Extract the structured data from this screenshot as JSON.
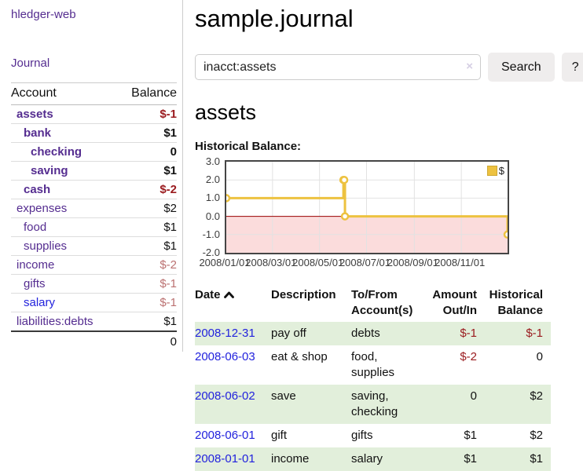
{
  "colors": {
    "link_purple": "#552d90",
    "link_blue": "#2222dd",
    "negative_strong": "#9a1a1e",
    "negative_soft": "#bb7171",
    "row_stripe_green": "#e2efdb",
    "button_gray": "#efeded",
    "chart_line_gold": "#edc240",
    "chart_negative_region": "#fbdcdc",
    "chart_zero_line": "#990000"
  },
  "app_title": "hledger-web",
  "sidebar": {
    "journal_link": "Journal",
    "accounts": {
      "header_account": "Account",
      "header_balance": "Balance",
      "rows": [
        {
          "name": "assets",
          "balance": "$-1"
        },
        {
          "name": "bank",
          "balance": "$1"
        },
        {
          "name": "checking",
          "balance": "0"
        },
        {
          "name": "saving",
          "balance": "$1"
        },
        {
          "name": "cash",
          "balance": "$-2"
        },
        {
          "name": "expenses",
          "balance": "$2"
        },
        {
          "name": "food",
          "balance": "$1"
        },
        {
          "name": "supplies",
          "balance": "$1"
        },
        {
          "name": "income",
          "balance": "$-2"
        },
        {
          "name": "gifts",
          "balance": "$-1"
        },
        {
          "name": "salary",
          "balance": "$-1"
        },
        {
          "name": "liabilities:debts",
          "balance": "$1"
        }
      ],
      "total": "0"
    }
  },
  "main": {
    "title": "sample.journal",
    "search": {
      "value": "inacct:assets",
      "clear": "×",
      "search_button": "Search",
      "help_button": "?"
    },
    "account_heading": "assets",
    "section_label": "Historical Balance:",
    "register": {
      "headers": [
        "Date",
        "Description",
        "To/From Account(s)",
        "Amount Out/In",
        "Historical Balance"
      ],
      "rows": [
        {
          "date": "2008-12-31",
          "description": "pay off",
          "accounts": "debts",
          "amount": "$-1",
          "balance": "$-1"
        },
        {
          "date": "2008-06-03",
          "description": "eat & shop",
          "accounts": "food, supplies",
          "amount": "$-2",
          "balance": "0"
        },
        {
          "date": "2008-06-02",
          "description": "save",
          "accounts": "saving, checking",
          "amount": "0",
          "balance": "$2"
        },
        {
          "date": "2008-06-01",
          "description": "gift",
          "accounts": "gifts",
          "amount": "$1",
          "balance": "$2"
        },
        {
          "date": "2008-01-01",
          "description": "income",
          "accounts": "salary",
          "amount": "$1",
          "balance": "$1"
        }
      ]
    }
  },
  "chart_data": {
    "type": "line",
    "step": true,
    "title": "Historical Balance",
    "xlabel": "",
    "ylabel": "",
    "xrange": [
      "2008-01-01",
      "2008-12-31"
    ],
    "ylim": [
      -2,
      3
    ],
    "yticks": [
      3,
      2,
      1,
      0,
      -1,
      -2
    ],
    "xticks": [
      "2008/01/01",
      "2008/03/01",
      "2008/05/01",
      "2008/07/01",
      "2008/09/01",
      "2008/11/01"
    ],
    "grid": true,
    "legend_position": "top-right",
    "series": [
      {
        "name": "$",
        "points": [
          [
            "2008-01-01",
            1
          ],
          [
            "2008-06-01",
            2
          ],
          [
            "2008-06-02",
            2
          ],
          [
            "2008-06-03",
            0
          ],
          [
            "2008-12-31",
            -1
          ]
        ]
      }
    ],
    "colors": {
      "line": "#edc240",
      "negative_region": "#fbdcdc",
      "zero_line": "#990000",
      "grid": "#e2e2e2"
    }
  }
}
